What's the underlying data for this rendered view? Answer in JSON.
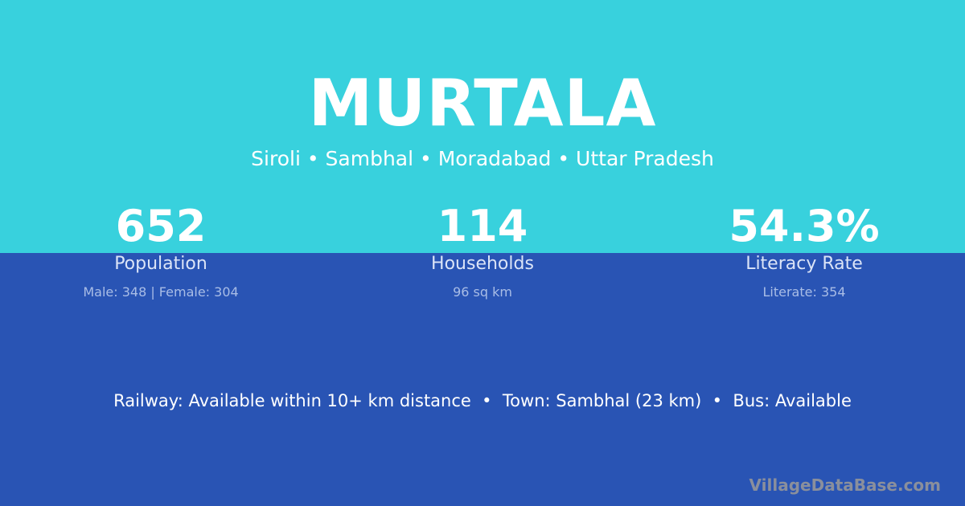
{
  "colors": {
    "top_band": "#38d1dd",
    "bottom_band": "#2954b4"
  },
  "village": {
    "name": "MURTALA",
    "location": "Siroli • Sambhal • Moradabad • Uttar Pradesh"
  },
  "stats": [
    {
      "value": "652",
      "label": "Population",
      "detail": "Male: 348 | Female: 304"
    },
    {
      "value": "114",
      "label": "Households",
      "detail": "96 sq km"
    },
    {
      "value": "54.3%",
      "label": "Literacy Rate",
      "detail": "Literate: 354"
    }
  ],
  "connectivity": "Railway: Available within 10+ km distance  •  Town: Sambhal (23 km)  •  Bus: Available",
  "watermark": "VillageDataBase.com"
}
